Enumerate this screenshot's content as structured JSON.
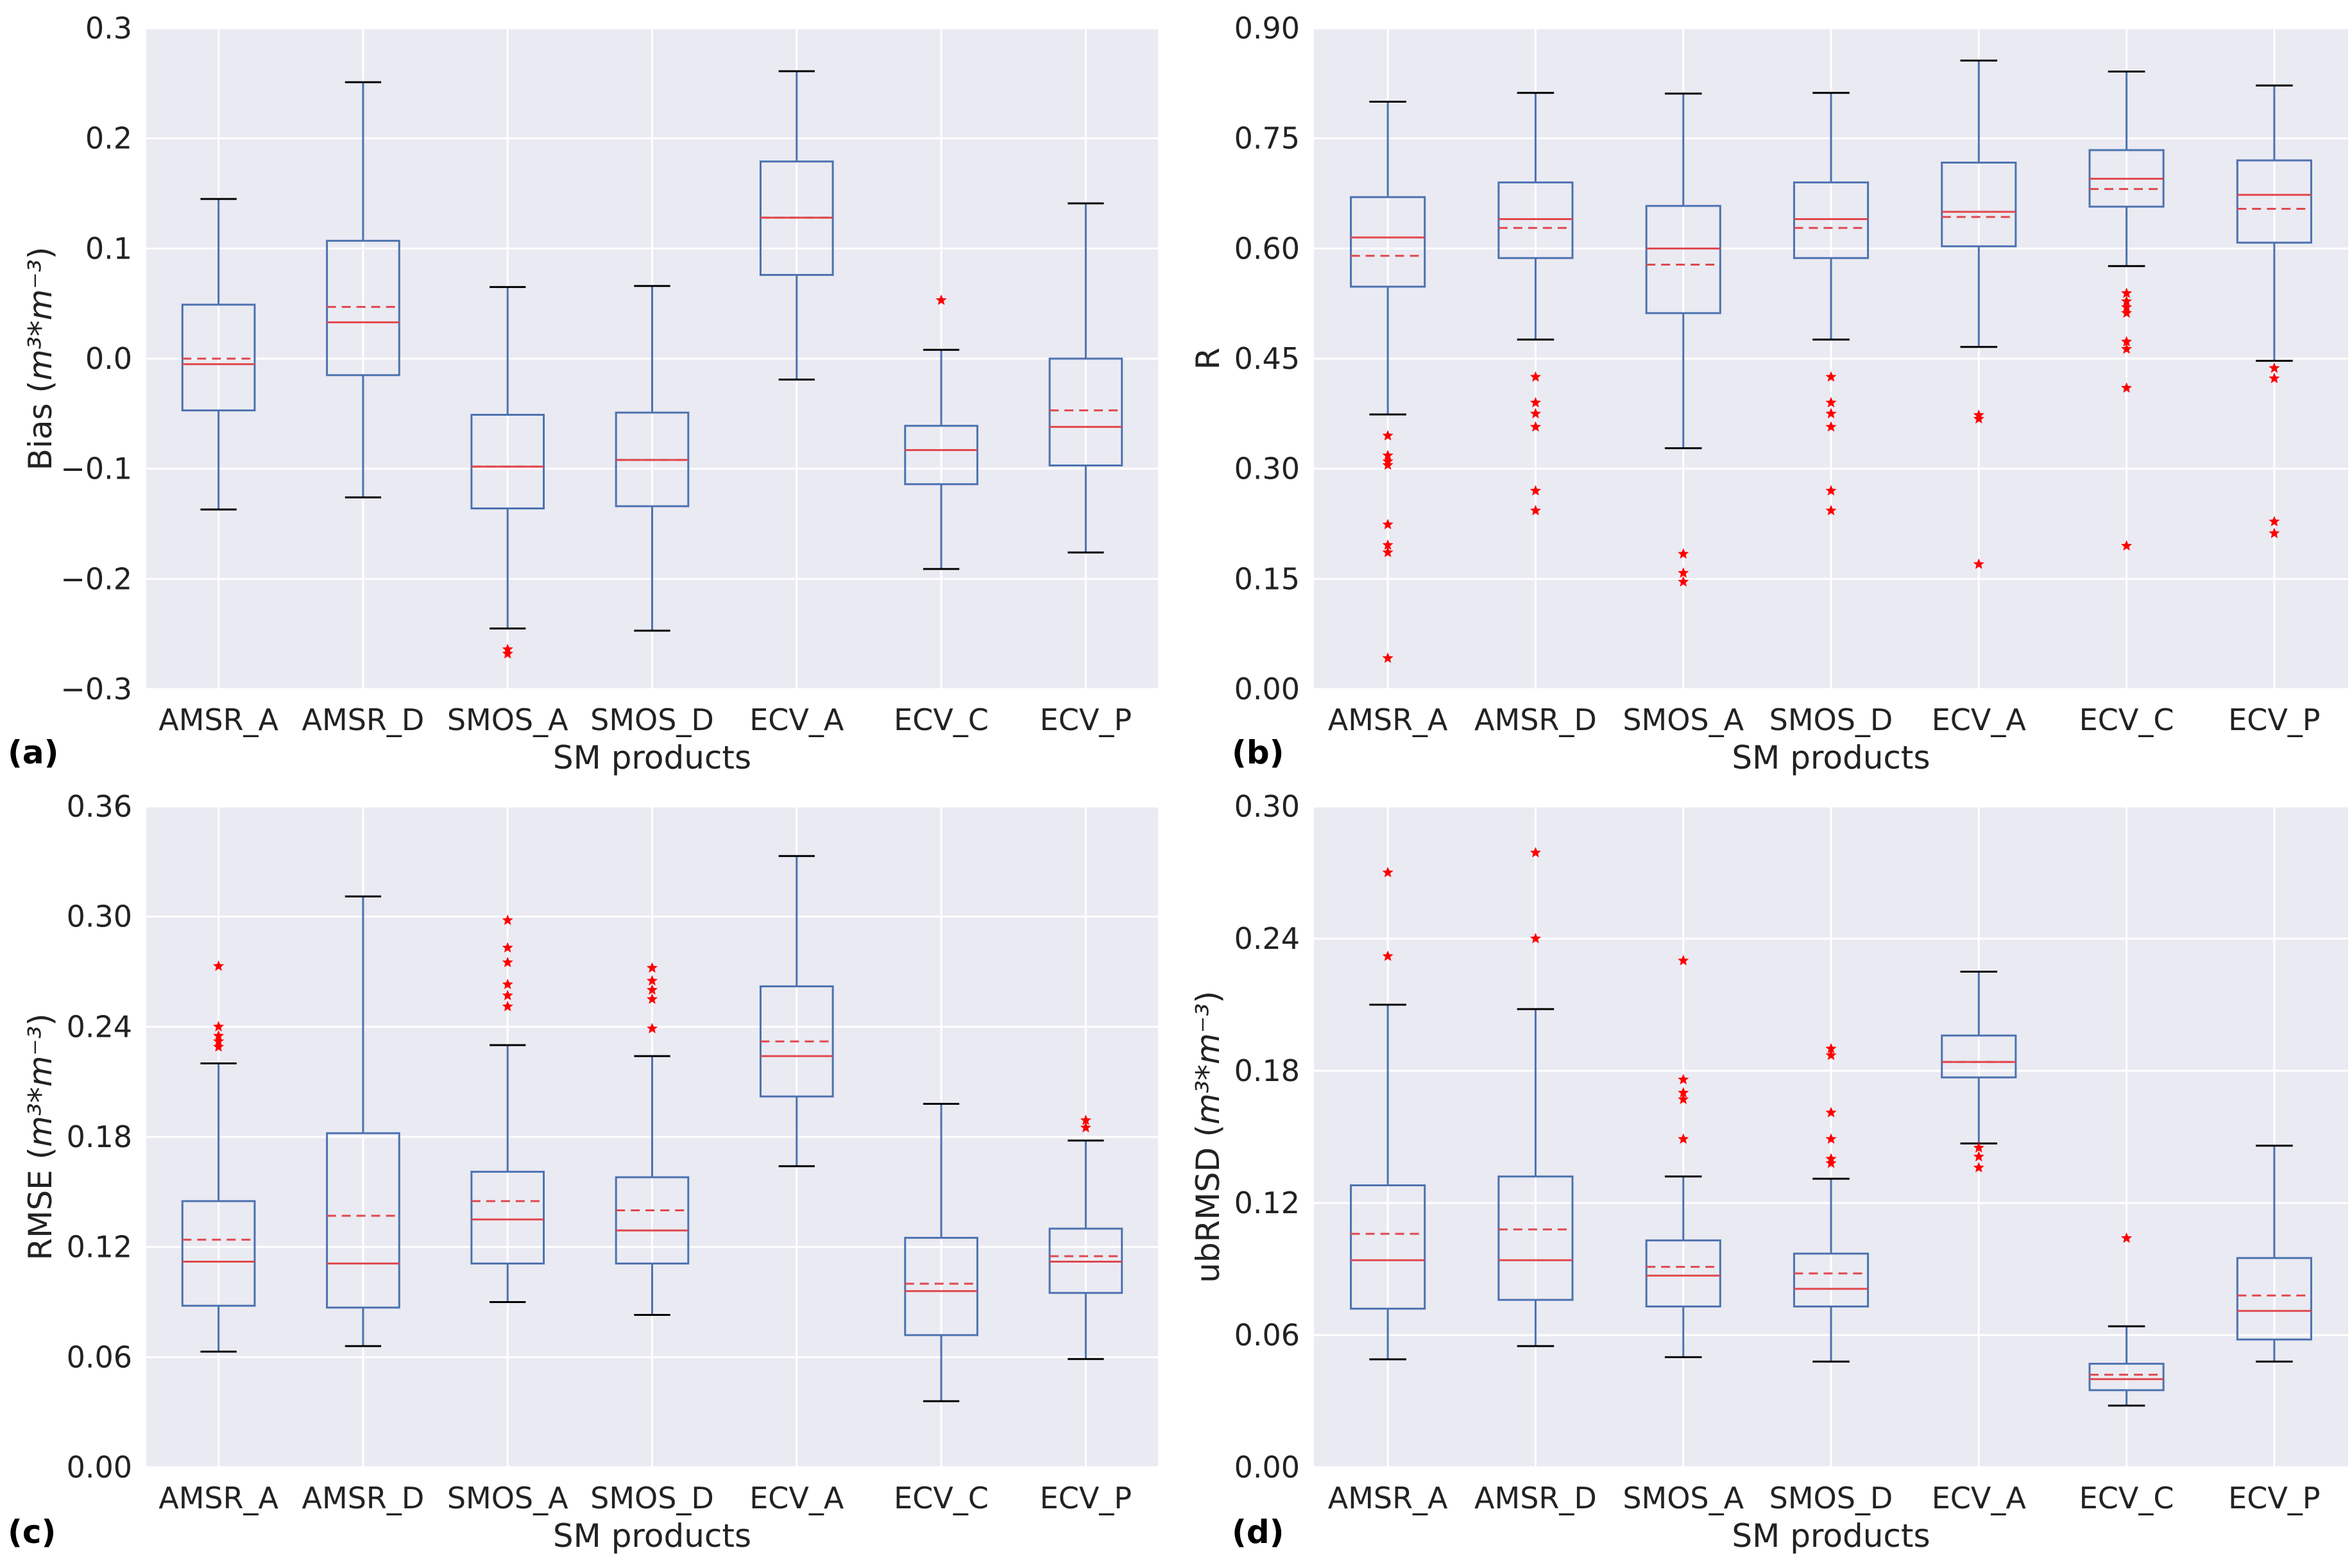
{
  "chart_data": [
    {
      "type": "box",
      "panel": "(a)",
      "xlabel": "SM products",
      "ylabel": "Bias (m³*m⁻³)",
      "ylabel_main": "Bias (",
      "ylabel_math": "m³*m⁻³",
      "ylabel_end": ")",
      "ylim": [
        -0.3,
        0.3
      ],
      "yticks": [
        -0.3,
        -0.2,
        -0.1,
        0.0,
        0.1,
        0.2,
        0.3
      ],
      "ytick_labels": [
        "−0.3",
        "−0.2",
        "−0.1",
        "0.0",
        "0.1",
        "0.2",
        "0.3"
      ],
      "categories": [
        "AMSR_A",
        "AMSR_D",
        "SMOS_A",
        "SMOS_D",
        "ECV_A",
        "ECV_C",
        "ECV_P"
      ],
      "boxes": [
        {
          "whislo": -0.137,
          "q1": -0.047,
          "med": -0.005,
          "mean": 0.0,
          "q3": 0.049,
          "whishi": 0.145,
          "fliers": []
        },
        {
          "whislo": -0.126,
          "q1": -0.015,
          "med": 0.033,
          "mean": 0.047,
          "q3": 0.107,
          "whishi": 0.251,
          "fliers": []
        },
        {
          "whislo": -0.245,
          "q1": -0.136,
          "med": -0.098,
          "mean": -0.098,
          "q3": -0.051,
          "whishi": 0.065,
          "fliers": [
            -0.264,
            -0.268
          ]
        },
        {
          "whislo": -0.247,
          "q1": -0.134,
          "med": -0.092,
          "mean": -0.092,
          "q3": -0.049,
          "whishi": 0.066,
          "fliers": []
        },
        {
          "whislo": -0.019,
          "q1": 0.076,
          "med": 0.128,
          "mean": 0.128,
          "q3": 0.179,
          "whishi": 0.261,
          "fliers": []
        },
        {
          "whislo": -0.191,
          "q1": -0.114,
          "med": -0.083,
          "mean": -0.083,
          "q3": -0.061,
          "whishi": 0.008,
          "fliers": [
            0.053
          ]
        },
        {
          "whislo": -0.176,
          "q1": -0.097,
          "med": -0.062,
          "mean": -0.047,
          "q3": 0.0,
          "whishi": 0.141,
          "fliers": []
        }
      ]
    },
    {
      "type": "box",
      "panel": "(b)",
      "xlabel": "SM products",
      "ylabel": "R",
      "ylabel_main": "R",
      "ylabel_math": "",
      "ylabel_end": "",
      "ylim": [
        0.0,
        0.9
      ],
      "yticks": [
        0.0,
        0.15,
        0.3,
        0.45,
        0.6,
        0.75,
        0.9
      ],
      "ytick_labels": [
        "0.00",
        "0.15",
        "0.30",
        "0.45",
        "0.60",
        "0.75",
        "0.90"
      ],
      "categories": [
        "AMSR_A",
        "AMSR_D",
        "SMOS_A",
        "SMOS_D",
        "ECV_A",
        "ECV_C",
        "ECV_P"
      ],
      "boxes": [
        {
          "whislo": 0.374,
          "q1": 0.548,
          "med": 0.615,
          "mean": 0.59,
          "q3": 0.67,
          "whishi": 0.8,
          "fliers": [
            0.345,
            0.318,
            0.31,
            0.305,
            0.224,
            0.196,
            0.186,
            0.042
          ]
        },
        {
          "whislo": 0.476,
          "q1": 0.587,
          "med": 0.64,
          "mean": 0.628,
          "q3": 0.69,
          "whishi": 0.812,
          "fliers": [
            0.425,
            0.39,
            0.375,
            0.357,
            0.27,
            0.243
          ]
        },
        {
          "whislo": 0.328,
          "q1": 0.512,
          "med": 0.6,
          "mean": 0.578,
          "q3": 0.658,
          "whishi": 0.811,
          "fliers": [
            0.184,
            0.158,
            0.146
          ]
        },
        {
          "whislo": 0.476,
          "q1": 0.587,
          "med": 0.64,
          "mean": 0.628,
          "q3": 0.69,
          "whishi": 0.812,
          "fliers": [
            0.425,
            0.39,
            0.375,
            0.357,
            0.27,
            0.243
          ]
        },
        {
          "whislo": 0.466,
          "q1": 0.603,
          "med": 0.65,
          "mean": 0.643,
          "q3": 0.717,
          "whishi": 0.856,
          "fliers": [
            0.373,
            0.368,
            0.17
          ]
        },
        {
          "whislo": 0.576,
          "q1": 0.657,
          "med": 0.695,
          "mean": 0.681,
          "q3": 0.734,
          "whishi": 0.841,
          "fliers": [
            0.539,
            0.528,
            0.52,
            0.512,
            0.473,
            0.463,
            0.41,
            0.195
          ]
        },
        {
          "whislo": 0.447,
          "q1": 0.608,
          "med": 0.673,
          "mean": 0.654,
          "q3": 0.72,
          "whishi": 0.822,
          "fliers": [
            0.437,
            0.423,
            0.228,
            0.212
          ]
        }
      ]
    },
    {
      "type": "box",
      "panel": "(c)",
      "xlabel": "SM products",
      "ylabel": "RMSE (m³*m⁻³)",
      "ylabel_main": "RMSE (",
      "ylabel_math": "m³*m⁻³",
      "ylabel_end": ")",
      "ylim": [
        0.0,
        0.36
      ],
      "yticks": [
        0.0,
        0.06,
        0.12,
        0.18,
        0.24,
        0.3,
        0.36
      ],
      "ytick_labels": [
        "0.00",
        "0.06",
        "0.12",
        "0.18",
        "0.24",
        "0.30",
        "0.36"
      ],
      "categories": [
        "AMSR_A",
        "AMSR_D",
        "SMOS_A",
        "SMOS_D",
        "ECV_A",
        "ECV_C",
        "ECV_P"
      ],
      "boxes": [
        {
          "whislo": 0.063,
          "q1": 0.088,
          "med": 0.112,
          "mean": 0.124,
          "q3": 0.145,
          "whishi": 0.22,
          "fliers": [
            0.273,
            0.24,
            0.235,
            0.232,
            0.229
          ]
        },
        {
          "whislo": 0.066,
          "q1": 0.087,
          "med": 0.111,
          "mean": 0.137,
          "q3": 0.182,
          "whishi": 0.311,
          "fliers": []
        },
        {
          "whislo": 0.09,
          "q1": 0.111,
          "med": 0.135,
          "mean": 0.145,
          "q3": 0.161,
          "whishi": 0.23,
          "fliers": [
            0.298,
            0.283,
            0.275,
            0.263,
            0.257,
            0.251
          ]
        },
        {
          "whislo": 0.083,
          "q1": 0.111,
          "med": 0.129,
          "mean": 0.14,
          "q3": 0.158,
          "whishi": 0.224,
          "fliers": [
            0.272,
            0.265,
            0.26,
            0.255,
            0.239
          ]
        },
        {
          "whislo": 0.164,
          "q1": 0.202,
          "med": 0.224,
          "mean": 0.232,
          "q3": 0.262,
          "whishi": 0.333,
          "fliers": []
        },
        {
          "whislo": 0.036,
          "q1": 0.072,
          "med": 0.096,
          "mean": 0.1,
          "q3": 0.125,
          "whishi": 0.198,
          "fliers": []
        },
        {
          "whislo": 0.059,
          "q1": 0.095,
          "med": 0.112,
          "mean": 0.115,
          "q3": 0.13,
          "whishi": 0.178,
          "fliers": [
            0.189,
            0.185
          ]
        }
      ]
    },
    {
      "type": "box",
      "panel": "(d)",
      "xlabel": "SM products",
      "ylabel": "ubRMSD (m³*m⁻³)",
      "ylabel_main": "ubRMSD (",
      "ylabel_math": "m³*m⁻³",
      "ylabel_end": ")",
      "ylim": [
        0.0,
        0.3
      ],
      "yticks": [
        0.0,
        0.06,
        0.12,
        0.18,
        0.24,
        0.3
      ],
      "ytick_labels": [
        "0.00",
        "0.06",
        "0.12",
        "0.18",
        "0.24",
        "0.30"
      ],
      "categories": [
        "AMSR_A",
        "AMSR_D",
        "SMOS_A",
        "SMOS_D",
        "ECV_A",
        "ECV_C",
        "ECV_P"
      ],
      "boxes": [
        {
          "whislo": 0.049,
          "q1": 0.072,
          "med": 0.094,
          "mean": 0.106,
          "q3": 0.128,
          "whishi": 0.21,
          "fliers": [
            0.27,
            0.232
          ]
        },
        {
          "whislo": 0.055,
          "q1": 0.076,
          "med": 0.094,
          "mean": 0.108,
          "q3": 0.132,
          "whishi": 0.208,
          "fliers": [
            0.279,
            0.24
          ]
        },
        {
          "whislo": 0.05,
          "q1": 0.073,
          "med": 0.087,
          "mean": 0.091,
          "q3": 0.103,
          "whishi": 0.132,
          "fliers": [
            0.23,
            0.176,
            0.17,
            0.167,
            0.149
          ]
        },
        {
          "whislo": 0.048,
          "q1": 0.073,
          "med": 0.081,
          "mean": 0.088,
          "q3": 0.097,
          "whishi": 0.131,
          "fliers": [
            0.19,
            0.187,
            0.161,
            0.149,
            0.14,
            0.138
          ]
        },
        {
          "whislo": 0.147,
          "q1": 0.177,
          "med": 0.184,
          "mean": 0.184,
          "q3": 0.196,
          "whishi": 0.225,
          "fliers": [
            0.145,
            0.141,
            0.136
          ]
        },
        {
          "whislo": 0.028,
          "q1": 0.035,
          "med": 0.04,
          "mean": 0.042,
          "q3": 0.047,
          "whishi": 0.064,
          "fliers": [
            0.104
          ]
        },
        {
          "whislo": 0.048,
          "q1": 0.058,
          "med": 0.071,
          "mean": 0.078,
          "q3": 0.095,
          "whishi": 0.146,
          "fliers": []
        }
      ]
    }
  ],
  "colors": {
    "plot_background": "#eaeaf2",
    "grid": "#ffffff",
    "box": "#4c72b0",
    "median": "#e0484e",
    "flier": "#ff0000",
    "text": "#222222"
  }
}
